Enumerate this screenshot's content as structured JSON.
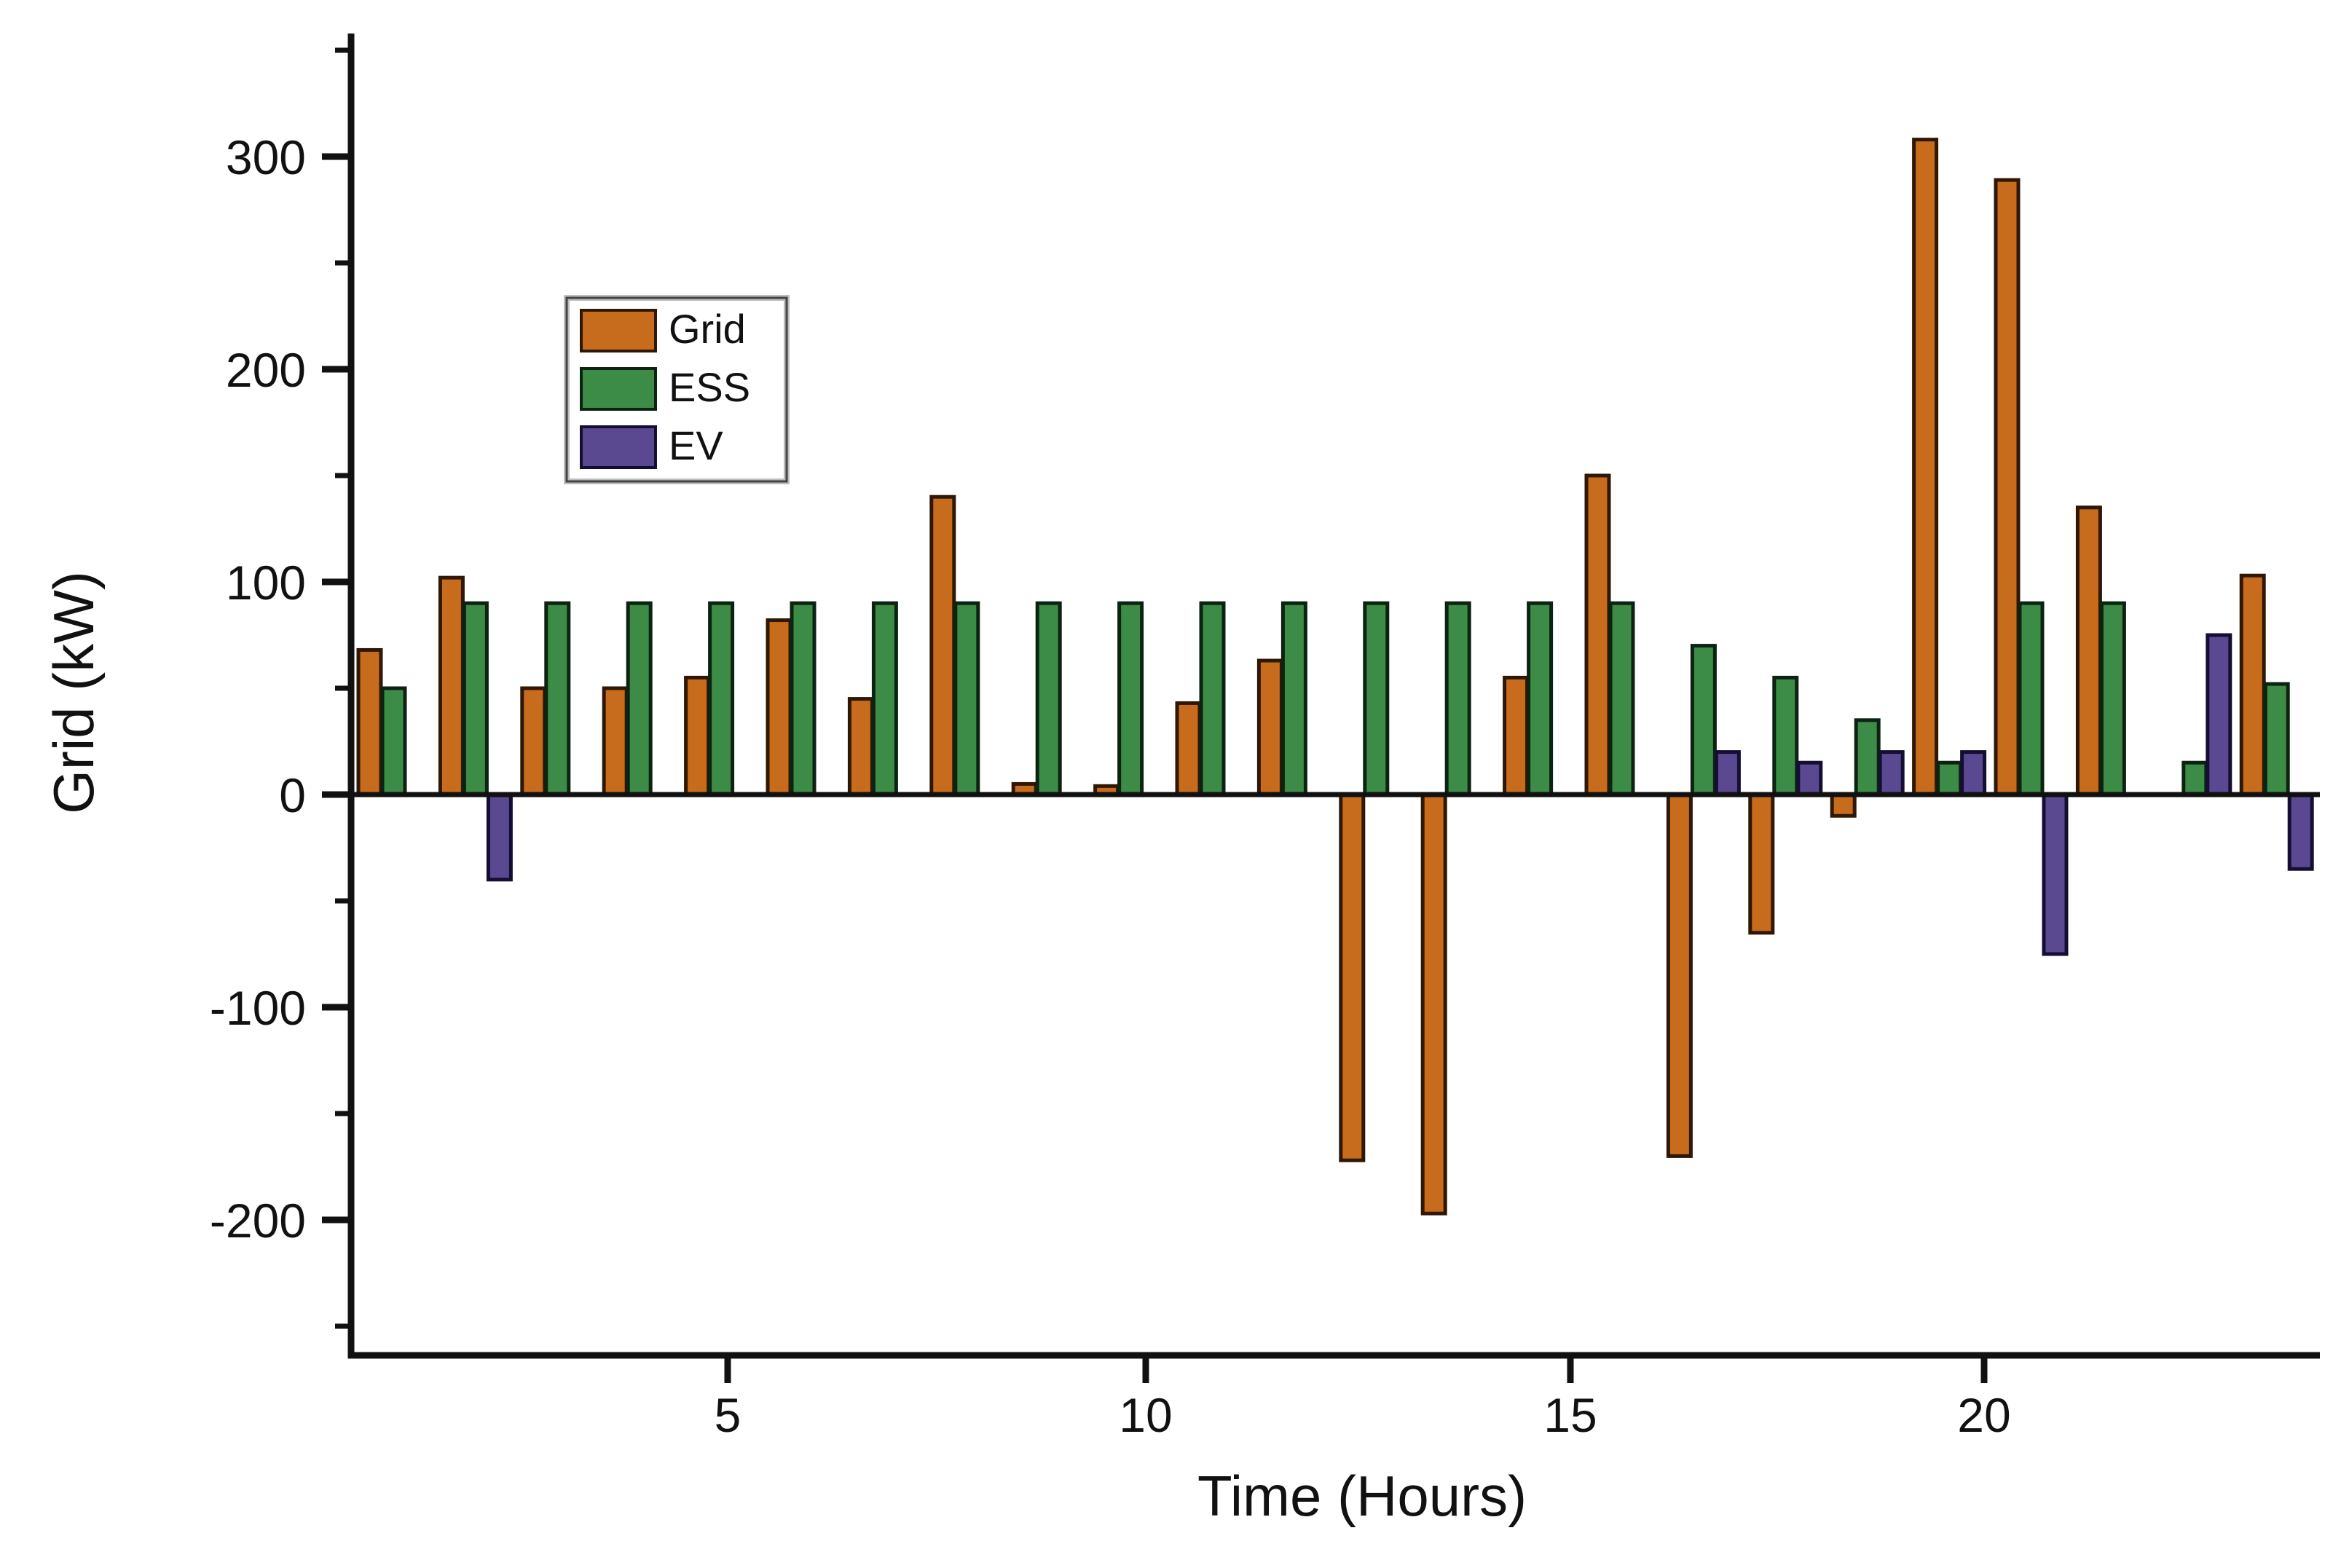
{
  "chart_data": {
    "type": "bar",
    "title": "",
    "xlabel": "Time (Hours)",
    "ylabel": "Grid (kW)",
    "x": [
      1,
      2,
      3,
      4,
      5,
      6,
      7,
      8,
      9,
      10,
      11,
      12,
      13,
      14,
      15,
      16,
      17,
      18,
      19,
      20,
      21,
      22,
      23,
      24
    ],
    "series": [
      {
        "name": "Grid",
        "color": "#C76B1C",
        "edge": "#2e1703",
        "values": [
          68,
          102,
          50,
          50,
          55,
          82,
          45,
          140,
          5,
          4,
          43,
          63,
          -172,
          -197,
          55,
          150,
          -170,
          -65,
          -10,
          308,
          289,
          135,
          0,
          103
        ]
      },
      {
        "name": "ESS",
        "color": "#3C8B46",
        "edge": "#0d2312",
        "values": [
          50,
          90,
          90,
          90,
          90,
          90,
          90,
          90,
          90,
          90,
          90,
          90,
          90,
          90,
          90,
          90,
          70,
          55,
          35,
          15,
          90,
          90,
          15,
          52
        ]
      },
      {
        "name": "EV",
        "color": "#5A4890",
        "edge": "#150e33",
        "values": [
          0,
          -40,
          0,
          0,
          0,
          0,
          0,
          0,
          0,
          0,
          0,
          0,
          0,
          0,
          0,
          0,
          20,
          15,
          20,
          20,
          -75,
          0,
          75,
          -35
        ]
      }
    ],
    "ylim": [
      -265,
      360
    ],
    "yticks_major": [
      300,
      200,
      100,
      0,
      -100,
      -200
    ],
    "yticks_minor": [
      350,
      250,
      150,
      50,
      -50,
      -150,
      -250
    ],
    "xticks": [
      5,
      10,
      15,
      20
    ],
    "grid": "off",
    "legend_position": "upper-left-inside",
    "axis_color": "#111111",
    "background": "#ffffff"
  }
}
